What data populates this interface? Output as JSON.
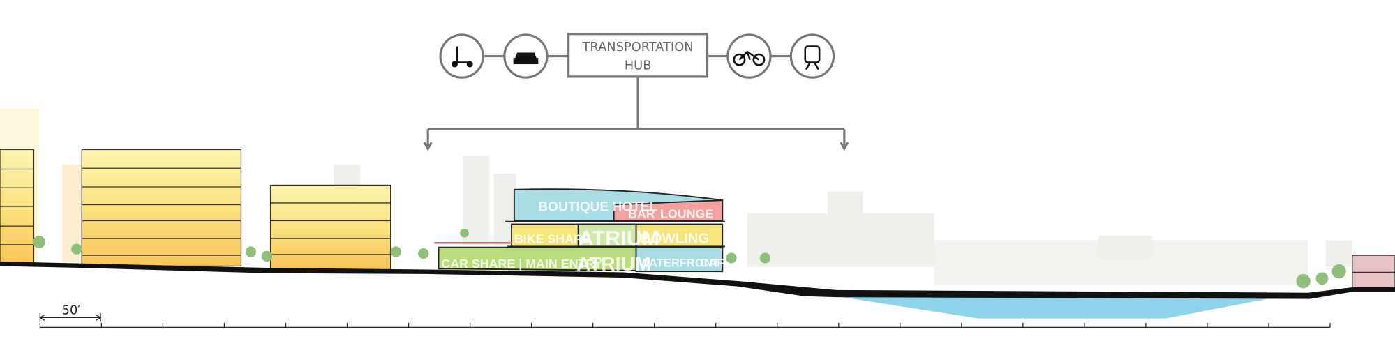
{
  "hub": {
    "label_lines": [
      "TRANSPORTATION",
      "HUB"
    ]
  },
  "program": {
    "top_floor": [
      "BOUTIQUE HOTEL",
      "BAR",
      "LOUNGE"
    ],
    "middle_floor": [
      "BIKE SHARE",
      "ATRIUM",
      "BOWLING"
    ],
    "ground_floor": [
      "CAR SHARE | MAIN ENTRY",
      "ATRIUM",
      "WATERFRONT",
      "CAFE"
    ]
  },
  "scale_bar": {
    "label": "50′"
  }
}
